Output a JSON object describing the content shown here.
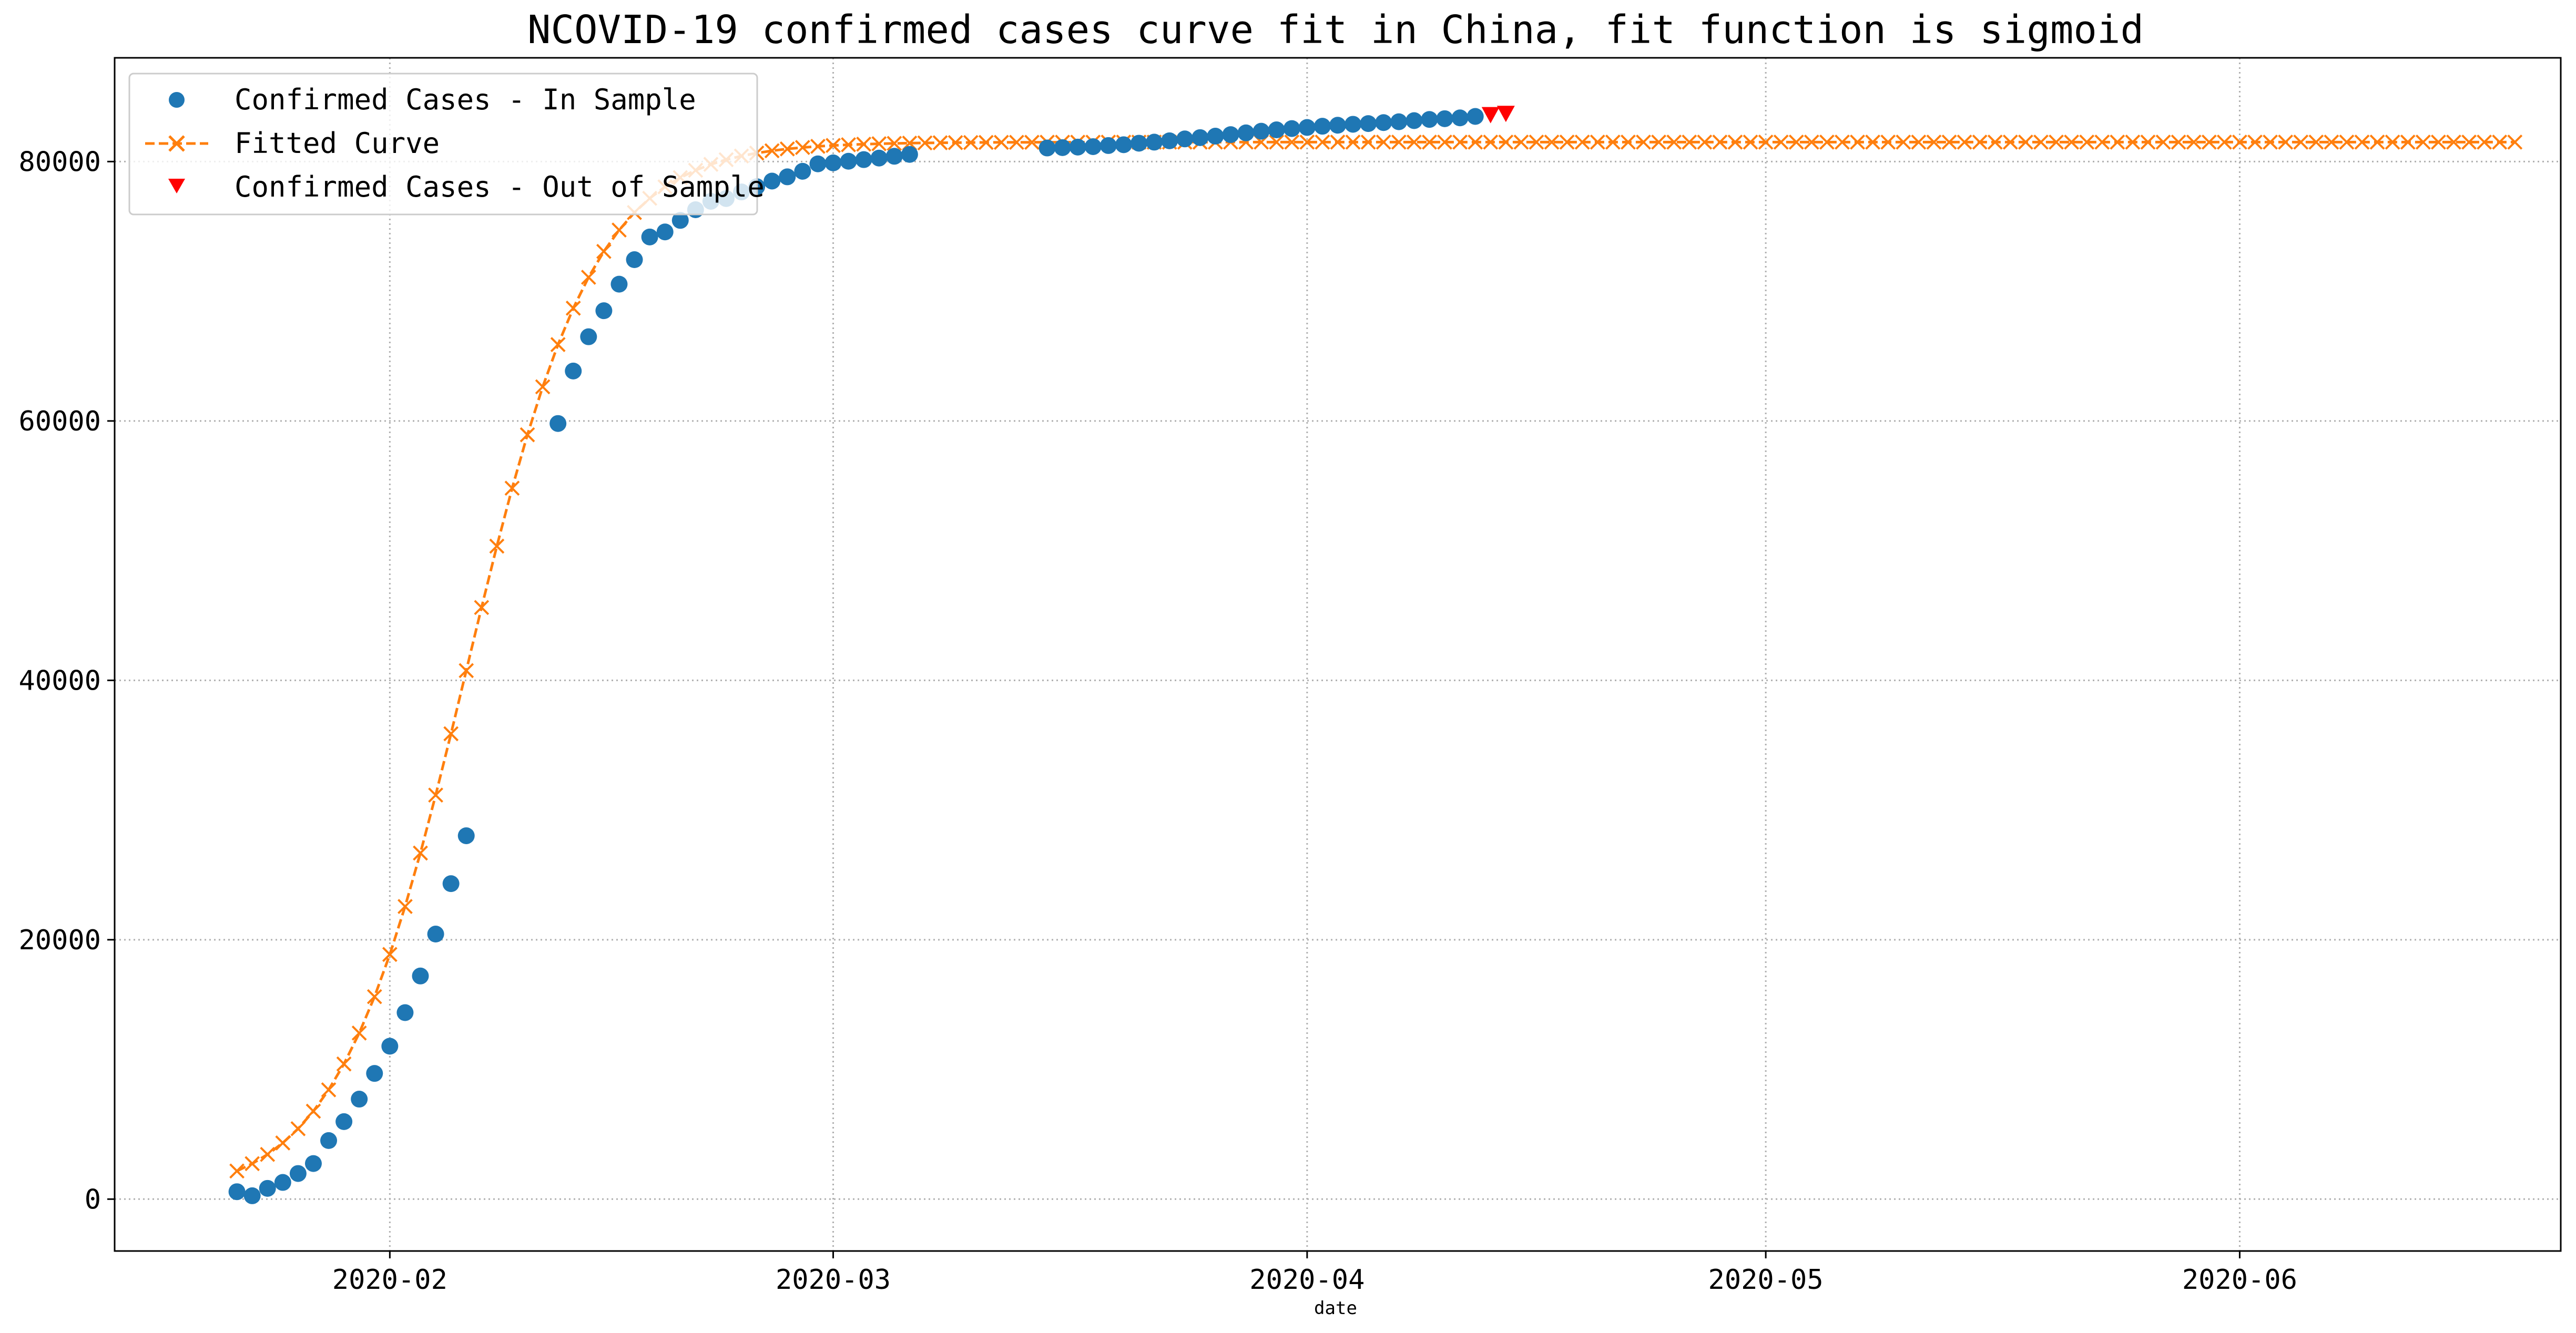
{
  "chart_data": {
    "type": "scatter",
    "title": "NCOVID-19 confirmed cases curve fit in China, fit function is sigmoid",
    "xlabel": "date",
    "ylabel": "",
    "x_axis_type": "date",
    "xlim": [
      "2020-01-14",
      "2020-06-22"
    ],
    "ylim": [
      -4000,
      88000
    ],
    "x_ticks": [
      "2020-02",
      "2020-03",
      "2020-04",
      "2020-05",
      "2020-06"
    ],
    "x_tick_dates": [
      "2020-02-01",
      "2020-03-01",
      "2020-04-01",
      "2020-05-01",
      "2020-06-01"
    ],
    "y_ticks": [
      0,
      20000,
      40000,
      60000,
      80000
    ],
    "grid": true,
    "grid_style": "dotted",
    "legend_position": "top-left",
    "series": [
      {
        "name": "Confirmed Cases - In Sample",
        "marker": "circle",
        "color": "#1f77b4",
        "points": [
          [
            "2020-01-22",
            571
          ],
          [
            "2020-01-23",
            259
          ],
          [
            "2020-01-24",
            830
          ],
          [
            "2020-01-25",
            1287
          ],
          [
            "2020-01-26",
            1975
          ],
          [
            "2020-01-27",
            2744
          ],
          [
            "2020-01-28",
            4515
          ],
          [
            "2020-01-29",
            5974
          ],
          [
            "2020-01-30",
            7711
          ],
          [
            "2020-01-31",
            9692
          ],
          [
            "2020-02-01",
            11791
          ],
          [
            "2020-02-02",
            14380
          ],
          [
            "2020-02-03",
            17205
          ],
          [
            "2020-02-04",
            20438
          ],
          [
            "2020-02-05",
            24324
          ],
          [
            "2020-02-06",
            28018
          ],
          [
            "2020-02-12",
            59804
          ],
          [
            "2020-02-13",
            63851
          ],
          [
            "2020-02-14",
            66492
          ],
          [
            "2020-02-15",
            68500
          ],
          [
            "2020-02-16",
            70548
          ],
          [
            "2020-02-17",
            72436
          ],
          [
            "2020-02-18",
            74185
          ],
          [
            "2020-02-19",
            74576
          ],
          [
            "2020-02-20",
            75465
          ],
          [
            "2020-02-21",
            76288
          ],
          [
            "2020-02-22",
            76936
          ],
          [
            "2020-02-23",
            77150
          ],
          [
            "2020-02-24",
            77658
          ],
          [
            "2020-02-25",
            78064
          ],
          [
            "2020-02-26",
            78497
          ],
          [
            "2020-02-27",
            78824
          ],
          [
            "2020-02-28",
            79251
          ],
          [
            "2020-02-29",
            79824
          ],
          [
            "2020-03-01",
            79899
          ],
          [
            "2020-03-02",
            80026
          ],
          [
            "2020-03-03",
            80151
          ],
          [
            "2020-03-04",
            80270
          ],
          [
            "2020-03-05",
            80409
          ],
          [
            "2020-03-06",
            80552
          ],
          [
            "2020-03-15",
            81048
          ],
          [
            "2020-03-16",
            81077
          ],
          [
            "2020-03-17",
            81116
          ],
          [
            "2020-03-18",
            81151
          ],
          [
            "2020-03-19",
            81235
          ],
          [
            "2020-03-20",
            81300
          ],
          [
            "2020-03-21",
            81416
          ],
          [
            "2020-03-22",
            81498
          ],
          [
            "2020-03-23",
            81601
          ],
          [
            "2020-03-24",
            81747
          ],
          [
            "2020-03-25",
            81846
          ],
          [
            "2020-03-26",
            81960
          ],
          [
            "2020-03-27",
            82078
          ],
          [
            "2020-03-28",
            82213
          ],
          [
            "2020-03-29",
            82341
          ],
          [
            "2020-03-30",
            82447
          ],
          [
            "2020-03-31",
            82545
          ],
          [
            "2020-04-01",
            82631
          ],
          [
            "2020-04-02",
            82724
          ],
          [
            "2020-04-03",
            82802
          ],
          [
            "2020-04-04",
            82875
          ],
          [
            "2020-04-05",
            82930
          ],
          [
            "2020-04-06",
            83005
          ],
          [
            "2020-04-07",
            83071
          ],
          [
            "2020-04-08",
            83157
          ],
          [
            "2020-04-09",
            83249
          ],
          [
            "2020-04-10",
            83305
          ],
          [
            "2020-04-11",
            83369
          ],
          [
            "2020-04-12",
            83482
          ]
        ]
      },
      {
        "name": "Fitted Curve",
        "marker": "x",
        "line": "dashed",
        "color": "#ff7f0e",
        "sigmoid": {
          "L": 81500,
          "x0": "2020-02-06",
          "k": 0.24,
          "start": "2020-01-22",
          "end": "2020-06-19"
        }
      },
      {
        "name": "Confirmed Cases - Out of Sample",
        "marker": "triangle-down",
        "color": "#ff0000",
        "points": [
          [
            "2020-04-13",
            83597
          ],
          [
            "2020-04-14",
            83696
          ]
        ]
      }
    ]
  }
}
